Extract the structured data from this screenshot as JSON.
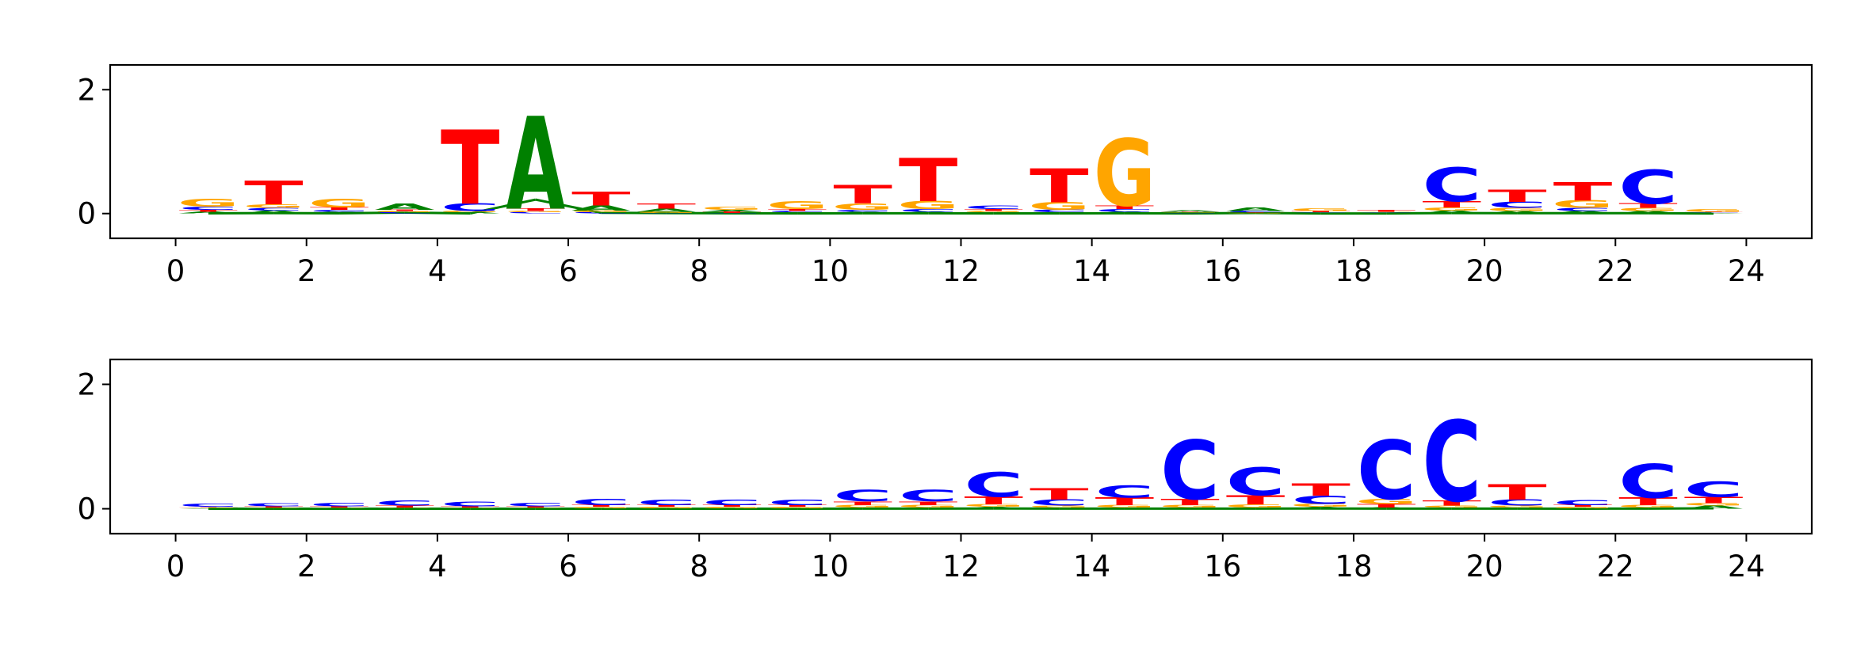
{
  "colors": {
    "A": "#008000",
    "C": "#0000ff",
    "G": "#ffa500",
    "T": "#ff0000"
  },
  "chart_data": [
    {
      "type": "sequence-logo",
      "title": "",
      "xlabel": "",
      "ylabel": "",
      "xlim": [
        -1,
        25
      ],
      "ylim": [
        -0.4,
        2.4
      ],
      "xticks": [
        "0",
        "2",
        "4",
        "6",
        "8",
        "10",
        "12",
        "14",
        "16",
        "18",
        "20",
        "22",
        "24"
      ],
      "yticks": [
        "0",
        "2"
      ],
      "positions": [
        {
          "x": 0,
          "stack": [
            [
              "A",
              0.03
            ],
            [
              "T",
              0.03
            ],
            [
              "C",
              0.05
            ],
            [
              "G",
              0.12
            ]
          ]
        },
        {
          "x": 1,
          "stack": [
            [
              "A",
              0.05
            ],
            [
              "C",
              0.04
            ],
            [
              "G",
              0.06
            ],
            [
              "T",
              0.38
            ]
          ]
        },
        {
          "x": 2,
          "stack": [
            [
              "A",
              0.03
            ],
            [
              "C",
              0.03
            ],
            [
              "T",
              0.04
            ],
            [
              "G",
              0.14
            ]
          ]
        },
        {
          "x": 3,
          "stack": [
            [
              "C",
              0.02
            ],
            [
              "G",
              0.02
            ],
            [
              "T",
              0.02
            ],
            [
              "A",
              0.1
            ]
          ]
        },
        {
          "x": 4,
          "stack": [
            [
              "A",
              0.02
            ],
            [
              "G",
              0.02
            ],
            [
              "C",
              0.12
            ],
            [
              "T",
              1.2
            ]
          ]
        },
        {
          "x": 5,
          "stack": [
            [
              "C",
              0.02
            ],
            [
              "G",
              0.02
            ],
            [
              "T",
              0.04
            ],
            [
              "A",
              1.5
            ]
          ]
        },
        {
          "x": 6,
          "stack": [
            [
              "C",
              0.02
            ],
            [
              "G",
              0.03
            ],
            [
              "A",
              0.08
            ],
            [
              "T",
              0.22
            ]
          ]
        },
        {
          "x": 7,
          "stack": [
            [
              "C",
              0.01
            ],
            [
              "G",
              0.02
            ],
            [
              "A",
              0.05
            ],
            [
              "T",
              0.08
            ]
          ]
        },
        {
          "x": 8,
          "stack": [
            [
              "C",
              0.01
            ],
            [
              "T",
              0.02
            ],
            [
              "A",
              0.03
            ],
            [
              "G",
              0.05
            ]
          ]
        },
        {
          "x": 9,
          "stack": [
            [
              "A",
              0.02
            ],
            [
              "C",
              0.02
            ],
            [
              "T",
              0.03
            ],
            [
              "G",
              0.12
            ]
          ]
        },
        {
          "x": 10,
          "stack": [
            [
              "A",
              0.03
            ],
            [
              "C",
              0.03
            ],
            [
              "G",
              0.1
            ],
            [
              "T",
              0.3
            ]
          ]
        },
        {
          "x": 11,
          "stack": [
            [
              "A",
              0.03
            ],
            [
              "C",
              0.04
            ],
            [
              "G",
              0.13
            ],
            [
              "T",
              0.7
            ]
          ]
        },
        {
          "x": 12,
          "stack": [
            [
              "A",
              0.02
            ],
            [
              "G",
              0.02
            ],
            [
              "T",
              0.03
            ],
            [
              "C",
              0.06
            ]
          ]
        },
        {
          "x": 13,
          "stack": [
            [
              "A",
              0.02
            ],
            [
              "C",
              0.04
            ],
            [
              "G",
              0.12
            ],
            [
              "T",
              0.55
            ]
          ]
        },
        {
          "x": 14,
          "stack": [
            [
              "A",
              0.03
            ],
            [
              "C",
              0.04
            ],
            [
              "T",
              0.06
            ],
            [
              "G",
              1.08
            ]
          ]
        },
        {
          "x": 15,
          "stack": [
            [
              "C",
              0.01
            ],
            [
              "G",
              0.01
            ],
            [
              "T",
              0.01
            ],
            [
              "A",
              0.02
            ]
          ]
        },
        {
          "x": 16,
          "stack": [
            [
              "G",
              0.01
            ],
            [
              "T",
              0.01
            ],
            [
              "C",
              0.02
            ],
            [
              "A",
              0.06
            ]
          ]
        },
        {
          "x": 17,
          "stack": [
            [
              "A",
              0.01
            ],
            [
              "C",
              0.01
            ],
            [
              "T",
              0.02
            ],
            [
              "G",
              0.04
            ]
          ]
        },
        {
          "x": 18,
          "stack": [
            [
              "A",
              0.01
            ],
            [
              "C",
              0.01
            ],
            [
              "G",
              0.01
            ],
            [
              "T",
              0.03
            ]
          ]
        },
        {
          "x": 19,
          "stack": [
            [
              "A",
              0.05
            ],
            [
              "G",
              0.05
            ],
            [
              "T",
              0.1
            ],
            [
              "C",
              0.55
            ]
          ]
        },
        {
          "x": 20,
          "stack": [
            [
              "A",
              0.04
            ],
            [
              "G",
              0.05
            ],
            [
              "C",
              0.1
            ],
            [
              "T",
              0.2
            ]
          ]
        },
        {
          "x": 21,
          "stack": [
            [
              "A",
              0.04
            ],
            [
              "C",
              0.05
            ],
            [
              "G",
              0.12
            ],
            [
              "T",
              0.3
            ]
          ]
        },
        {
          "x": 22,
          "stack": [
            [
              "A",
              0.04
            ],
            [
              "G",
              0.05
            ],
            [
              "T",
              0.07
            ],
            [
              "C",
              0.55
            ]
          ]
        },
        {
          "x": 23,
          "stack": [
            [
              "A",
              0.01
            ],
            [
              "C",
              0.01
            ],
            [
              "T",
              0.01
            ],
            [
              "G",
              0.04
            ]
          ]
        }
      ]
    },
    {
      "type": "sequence-logo",
      "title": "",
      "xlabel": "",
      "ylabel": "",
      "xlim": [
        -1,
        25
      ],
      "ylim": [
        -0.4,
        2.4
      ],
      "xticks": [
        "0",
        "2",
        "4",
        "6",
        "8",
        "10",
        "12",
        "14",
        "16",
        "18",
        "20",
        "22",
        "24"
      ],
      "yticks": [
        "0",
        "2"
      ],
      "positions": [
        {
          "x": 0,
          "stack": [
            [
              "A",
              0.01
            ],
            [
              "G",
              0.01
            ],
            [
              "T",
              0.01
            ],
            [
              "C",
              0.05
            ]
          ]
        },
        {
          "x": 1,
          "stack": [
            [
              "A",
              0.01
            ],
            [
              "G",
              0.01
            ],
            [
              "T",
              0.02
            ],
            [
              "C",
              0.05
            ]
          ]
        },
        {
          "x": 2,
          "stack": [
            [
              "A",
              0.01
            ],
            [
              "G",
              0.01
            ],
            [
              "T",
              0.02
            ],
            [
              "C",
              0.06
            ]
          ]
        },
        {
          "x": 3,
          "stack": [
            [
              "A",
              0.01
            ],
            [
              "G",
              0.01
            ],
            [
              "T",
              0.03
            ],
            [
              "C",
              0.08
            ]
          ]
        },
        {
          "x": 4,
          "stack": [
            [
              "A",
              0.01
            ],
            [
              "G",
              0.01
            ],
            [
              "T",
              0.02
            ],
            [
              "C",
              0.07
            ]
          ]
        },
        {
          "x": 5,
          "stack": [
            [
              "A",
              0.01
            ],
            [
              "G",
              0.01
            ],
            [
              "T",
              0.02
            ],
            [
              "C",
              0.06
            ]
          ]
        },
        {
          "x": 6,
          "stack": [
            [
              "A",
              0.01
            ],
            [
              "G",
              0.02
            ],
            [
              "T",
              0.03
            ],
            [
              "C",
              0.1
            ]
          ]
        },
        {
          "x": 7,
          "stack": [
            [
              "A",
              0.01
            ],
            [
              "G",
              0.02
            ],
            [
              "T",
              0.03
            ],
            [
              "C",
              0.09
            ]
          ]
        },
        {
          "x": 8,
          "stack": [
            [
              "A",
              0.01
            ],
            [
              "G",
              0.02
            ],
            [
              "T",
              0.03
            ],
            [
              "C",
              0.09
            ]
          ]
        },
        {
          "x": 9,
          "stack": [
            [
              "A",
              0.01
            ],
            [
              "G",
              0.02
            ],
            [
              "T",
              0.03
            ],
            [
              "C",
              0.09
            ]
          ]
        },
        {
          "x": 10,
          "stack": [
            [
              "A",
              0.02
            ],
            [
              "G",
              0.04
            ],
            [
              "T",
              0.06
            ],
            [
              "C",
              0.18
            ]
          ]
        },
        {
          "x": 11,
          "stack": [
            [
              "A",
              0.02
            ],
            [
              "G",
              0.04
            ],
            [
              "T",
              0.06
            ],
            [
              "C",
              0.18
            ]
          ]
        },
        {
          "x": 12,
          "stack": [
            [
              "A",
              0.03
            ],
            [
              "G",
              0.04
            ],
            [
              "T",
              0.12
            ],
            [
              "C",
              0.4
            ]
          ]
        },
        {
          "x": 13,
          "stack": [
            [
              "A",
              0.02
            ],
            [
              "G",
              0.03
            ],
            [
              "C",
              0.1
            ],
            [
              "T",
              0.18
            ]
          ]
        },
        {
          "x": 14,
          "stack": [
            [
              "A",
              0.02
            ],
            [
              "G",
              0.04
            ],
            [
              "T",
              0.12
            ],
            [
              "C",
              0.2
            ]
          ]
        },
        {
          "x": 15,
          "stack": [
            [
              "A",
              0.02
            ],
            [
              "G",
              0.04
            ],
            [
              "T",
              0.1
            ],
            [
              "C",
              0.95
            ]
          ]
        },
        {
          "x": 16,
          "stack": [
            [
              "A",
              0.02
            ],
            [
              "G",
              0.05
            ],
            [
              "T",
              0.15
            ],
            [
              "C",
              0.45
            ]
          ]
        },
        {
          "x": 17,
          "stack": [
            [
              "A",
              0.03
            ],
            [
              "G",
              0.05
            ],
            [
              "C",
              0.13
            ],
            [
              "T",
              0.2
            ]
          ]
        },
        {
          "x": 18,
          "stack": [
            [
              "A",
              0.02
            ],
            [
              "T",
              0.06
            ],
            [
              "G",
              0.08
            ],
            [
              "C",
              0.95
            ]
          ]
        },
        {
          "x": 19,
          "stack": [
            [
              "A",
              0.02
            ],
            [
              "G",
              0.03
            ],
            [
              "T",
              0.08
            ],
            [
              "C",
              1.3
            ]
          ]
        },
        {
          "x": 20,
          "stack": [
            [
              "A",
              0.02
            ],
            [
              "G",
              0.03
            ],
            [
              "C",
              0.1
            ],
            [
              "T",
              0.25
            ]
          ]
        },
        {
          "x": 21,
          "stack": [
            [
              "A",
              0.01
            ],
            [
              "G",
              0.02
            ],
            [
              "T",
              0.03
            ],
            [
              "C",
              0.08
            ]
          ]
        },
        {
          "x": 22,
          "stack": [
            [
              "A",
              0.02
            ],
            [
              "G",
              0.04
            ],
            [
              "T",
              0.12
            ],
            [
              "C",
              0.55
            ]
          ]
        },
        {
          "x": 23,
          "stack": [
            [
              "A",
              0.05
            ],
            [
              "G",
              0.04
            ],
            [
              "T",
              0.1
            ],
            [
              "C",
              0.25
            ]
          ]
        }
      ]
    }
  ]
}
